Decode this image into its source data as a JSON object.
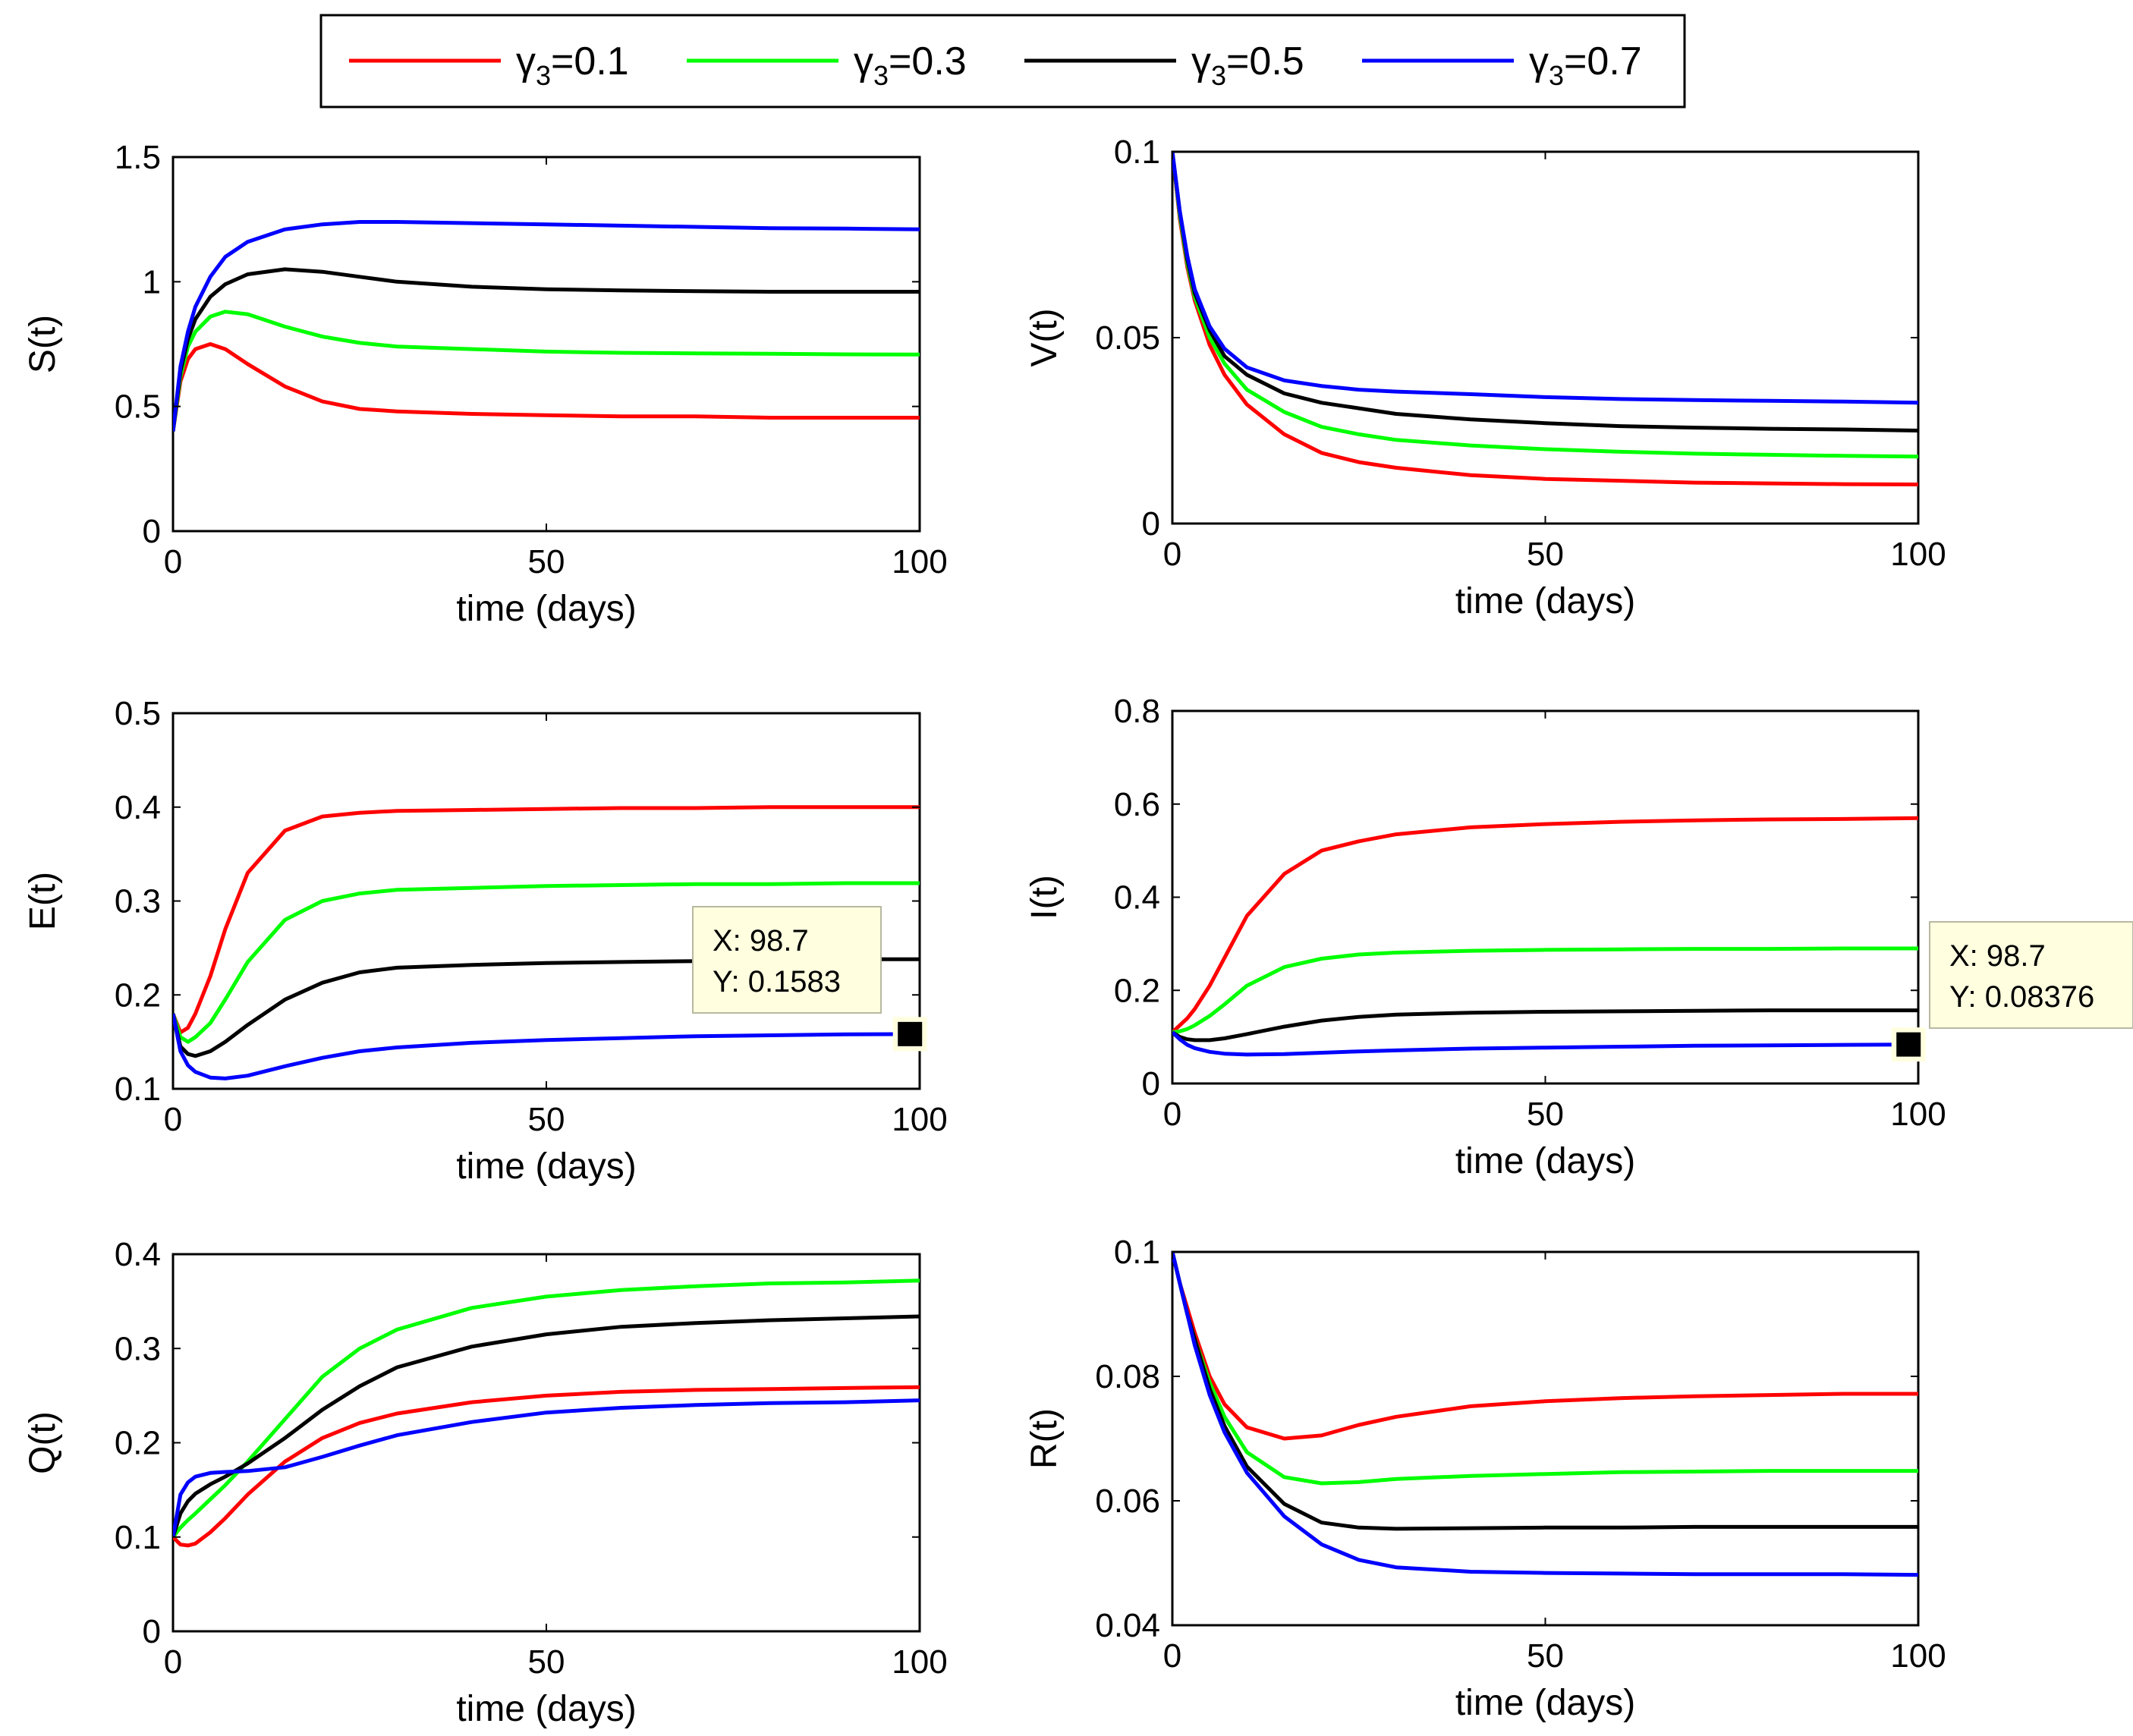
{
  "legend": {
    "entries": [
      {
        "symbol": "γ",
        "subscript": "3",
        "value": "=0.1",
        "color": "#ff0000"
      },
      {
        "symbol": "γ",
        "subscript": "3",
        "value": "=0.3",
        "color": "#00ff00"
      },
      {
        "symbol": "γ",
        "subscript": "3",
        "value": "=0.5",
        "color": "#000000"
      },
      {
        "symbol": "γ",
        "subscript": "3",
        "value": "=0.7",
        "color": "#0000ff"
      }
    ]
  },
  "chart_data": [
    {
      "type": "line",
      "ylabel": "S(t)",
      "xlabel": "time (days)",
      "xlim": [
        0,
        100
      ],
      "ylim": [
        0,
        1.5
      ],
      "xticks": [
        "0",
        "50",
        "100"
      ],
      "yticks": [
        "0",
        "0.5",
        "1",
        "1.5"
      ],
      "x": [
        0,
        1,
        2,
        3,
        5,
        7,
        10,
        15,
        20,
        25,
        30,
        40,
        50,
        60,
        70,
        80,
        90,
        100
      ],
      "series": [
        {
          "values": [
            0.4,
            0.6,
            0.69,
            0.73,
            0.75,
            0.73,
            0.67,
            0.58,
            0.52,
            0.49,
            0.48,
            0.47,
            0.465,
            0.46,
            0.46,
            0.455,
            0.455,
            0.455
          ],
          "color": "#ff0000"
        },
        {
          "values": [
            0.4,
            0.62,
            0.74,
            0.8,
            0.86,
            0.88,
            0.87,
            0.82,
            0.78,
            0.755,
            0.74,
            0.73,
            0.72,
            0.715,
            0.713,
            0.711,
            0.709,
            0.708
          ],
          "color": "#00ff00"
        },
        {
          "values": [
            0.4,
            0.64,
            0.77,
            0.85,
            0.94,
            0.99,
            1.03,
            1.05,
            1.04,
            1.02,
            1.0,
            0.98,
            0.97,
            0.965,
            0.962,
            0.96,
            0.96,
            0.96
          ],
          "color": "#000000"
        },
        {
          "values": [
            0.4,
            0.66,
            0.8,
            0.9,
            1.02,
            1.1,
            1.16,
            1.21,
            1.23,
            1.24,
            1.24,
            1.235,
            1.23,
            1.225,
            1.22,
            1.215,
            1.213,
            1.21
          ],
          "color": "#0000ff"
        }
      ]
    },
    {
      "type": "line",
      "ylabel": "V(t)",
      "xlabel": "time (days)",
      "xlim": [
        0,
        100
      ],
      "ylim": [
        0,
        0.1
      ],
      "xticks": [
        "0",
        "50",
        "100"
      ],
      "yticks": [
        "0",
        "0.05",
        "0.1"
      ],
      "x": [
        0,
        1,
        2,
        3,
        5,
        7,
        10,
        15,
        20,
        25,
        30,
        40,
        50,
        60,
        70,
        80,
        90,
        100
      ],
      "series": [
        {
          "values": [
            0.1,
            0.082,
            0.069,
            0.06,
            0.048,
            0.04,
            0.032,
            0.024,
            0.019,
            0.0165,
            0.015,
            0.013,
            0.012,
            0.0115,
            0.011,
            0.0108,
            0.0106,
            0.0105
          ],
          "color": "#ff0000"
        },
        {
          "values": [
            0.1,
            0.083,
            0.07,
            0.061,
            0.05,
            0.043,
            0.036,
            0.03,
            0.026,
            0.024,
            0.0225,
            0.021,
            0.02,
            0.0193,
            0.0188,
            0.0185,
            0.0182,
            0.018
          ],
          "color": "#00ff00"
        },
        {
          "values": [
            0.1,
            0.084,
            0.071,
            0.062,
            0.052,
            0.045,
            0.04,
            0.035,
            0.0325,
            0.031,
            0.0295,
            0.028,
            0.027,
            0.0262,
            0.0258,
            0.0255,
            0.0253,
            0.025
          ],
          "color": "#000000"
        },
        {
          "values": [
            0.1,
            0.084,
            0.072,
            0.063,
            0.053,
            0.047,
            0.042,
            0.0385,
            0.037,
            0.036,
            0.0355,
            0.0348,
            0.034,
            0.0335,
            0.0332,
            0.033,
            0.0328,
            0.0325
          ],
          "color": "#0000ff"
        }
      ]
    },
    {
      "type": "line",
      "ylabel": "E(t)",
      "xlabel": "time (days)",
      "xlim": [
        0,
        100
      ],
      "ylim": [
        0.1,
        0.5
      ],
      "xticks": [
        "0",
        "50",
        "100"
      ],
      "yticks": [
        "0.1",
        "0.2",
        "0.3",
        "0.4",
        "0.5"
      ],
      "x": [
        0,
        1,
        2,
        3,
        5,
        7,
        10,
        15,
        20,
        25,
        30,
        40,
        50,
        60,
        70,
        80,
        90,
        100
      ],
      "series": [
        {
          "values": [
            0.18,
            0.16,
            0.165,
            0.18,
            0.22,
            0.27,
            0.33,
            0.375,
            0.39,
            0.394,
            0.396,
            0.397,
            0.398,
            0.399,
            0.399,
            0.4,
            0.4,
            0.4
          ],
          "color": "#ff0000"
        },
        {
          "values": [
            0.18,
            0.155,
            0.15,
            0.155,
            0.17,
            0.195,
            0.235,
            0.28,
            0.3,
            0.308,
            0.312,
            0.314,
            0.316,
            0.317,
            0.318,
            0.318,
            0.319,
            0.319
          ],
          "color": "#00ff00"
        },
        {
          "values": [
            0.18,
            0.145,
            0.137,
            0.135,
            0.14,
            0.15,
            0.168,
            0.195,
            0.213,
            0.224,
            0.229,
            0.232,
            0.234,
            0.235,
            0.236,
            0.237,
            0.238,
            0.238
          ],
          "color": "#000000"
        },
        {
          "values": [
            0.18,
            0.14,
            0.125,
            0.118,
            0.112,
            0.111,
            0.114,
            0.124,
            0.133,
            0.14,
            0.144,
            0.149,
            0.152,
            0.154,
            0.156,
            0.157,
            0.158,
            0.1583
          ],
          "color": "#0000ff"
        }
      ],
      "datatip": {
        "x_label": "X: 98.7",
        "y_label": "Y: 0.1583",
        "x": 98.7,
        "y": 0.1583
      }
    },
    {
      "type": "line",
      "ylabel": "I(t)",
      "xlabel": "time (days)",
      "xlim": [
        0,
        100
      ],
      "ylim": [
        0,
        0.8
      ],
      "xticks": [
        "0",
        "50",
        "100"
      ],
      "yticks": [
        "0",
        "0.2",
        "0.4",
        "0.6",
        "0.8"
      ],
      "x": [
        0,
        1,
        2,
        3,
        5,
        7,
        10,
        15,
        20,
        25,
        30,
        40,
        50,
        60,
        70,
        80,
        90,
        100
      ],
      "series": [
        {
          "values": [
            0.11,
            0.125,
            0.14,
            0.16,
            0.21,
            0.27,
            0.36,
            0.45,
            0.5,
            0.52,
            0.535,
            0.55,
            0.557,
            0.562,
            0.565,
            0.567,
            0.568,
            0.57
          ],
          "color": "#ff0000"
        },
        {
          "values": [
            0.11,
            0.112,
            0.117,
            0.125,
            0.145,
            0.17,
            0.21,
            0.25,
            0.268,
            0.277,
            0.281,
            0.285,
            0.287,
            0.288,
            0.289,
            0.289,
            0.29,
            0.29
          ],
          "color": "#00ff00"
        },
        {
          "values": [
            0.11,
            0.1,
            0.095,
            0.093,
            0.093,
            0.097,
            0.106,
            0.122,
            0.135,
            0.143,
            0.148,
            0.152,
            0.154,
            0.155,
            0.156,
            0.157,
            0.157,
            0.157
          ],
          "color": "#000000"
        },
        {
          "values": [
            0.11,
            0.095,
            0.083,
            0.076,
            0.068,
            0.064,
            0.062,
            0.063,
            0.066,
            0.069,
            0.071,
            0.075,
            0.077,
            0.079,
            0.081,
            0.082,
            0.083,
            0.08376
          ],
          "color": "#0000ff"
        }
      ],
      "datatip": {
        "x_label": "X: 98.7",
        "y_label": "Y: 0.08376",
        "x": 98.7,
        "y": 0.08376
      }
    },
    {
      "type": "line",
      "ylabel": "Q(t)",
      "xlabel": "time (days)",
      "xlim": [
        0,
        100
      ],
      "ylim": [
        0,
        0.4
      ],
      "xticks": [
        "0",
        "50",
        "100"
      ],
      "yticks": [
        "0",
        "0.1",
        "0.2",
        "0.3",
        "0.4"
      ],
      "x": [
        0,
        1,
        2,
        3,
        5,
        7,
        10,
        15,
        20,
        25,
        30,
        40,
        50,
        60,
        70,
        80,
        90,
        100
      ],
      "series": [
        {
          "values": [
            0.1,
            0.092,
            0.091,
            0.093,
            0.105,
            0.12,
            0.145,
            0.18,
            0.205,
            0.221,
            0.231,
            0.243,
            0.25,
            0.254,
            0.256,
            0.257,
            0.258,
            0.259
          ],
          "color": "#ff0000"
        },
        {
          "values": [
            0.1,
            0.11,
            0.118,
            0.125,
            0.14,
            0.155,
            0.18,
            0.225,
            0.27,
            0.3,
            0.32,
            0.343,
            0.355,
            0.362,
            0.366,
            0.369,
            0.37,
            0.372
          ],
          "color": "#00ff00"
        },
        {
          "values": [
            0.1,
            0.125,
            0.138,
            0.146,
            0.156,
            0.164,
            0.178,
            0.205,
            0.235,
            0.26,
            0.28,
            0.302,
            0.315,
            0.323,
            0.327,
            0.33,
            0.332,
            0.334
          ],
          "color": "#000000"
        },
        {
          "values": [
            0.1,
            0.145,
            0.158,
            0.164,
            0.168,
            0.169,
            0.17,
            0.174,
            0.185,
            0.197,
            0.208,
            0.222,
            0.232,
            0.237,
            0.24,
            0.242,
            0.243,
            0.245
          ],
          "color": "#0000ff"
        }
      ]
    },
    {
      "type": "line",
      "ylabel": "R(t)",
      "xlabel": "time (days)",
      "xlim": [
        0,
        100
      ],
      "ylim": [
        0.04,
        0.1
      ],
      "xticks": [
        "0",
        "50",
        "100"
      ],
      "yticks": [
        "0.04",
        "0.06",
        "0.08",
        "0.1"
      ],
      "x": [
        0,
        1,
        2,
        3,
        5,
        7,
        10,
        15,
        20,
        25,
        30,
        40,
        50,
        60,
        70,
        80,
        90,
        100
      ],
      "series": [
        {
          "values": [
            0.1,
            0.095,
            0.091,
            0.087,
            0.08,
            0.0755,
            0.0718,
            0.07,
            0.0705,
            0.0722,
            0.0735,
            0.0752,
            0.076,
            0.0765,
            0.0768,
            0.077,
            0.0772,
            0.0772
          ],
          "color": "#ff0000"
        },
        {
          "values": [
            0.1,
            0.095,
            0.09,
            0.086,
            0.079,
            0.0735,
            0.0678,
            0.0638,
            0.0628,
            0.063,
            0.0635,
            0.064,
            0.0643,
            0.0646,
            0.0647,
            0.0648,
            0.0648,
            0.0648
          ],
          "color": "#00ff00"
        },
        {
          "values": [
            0.1,
            0.095,
            0.09,
            0.086,
            0.078,
            0.072,
            0.0655,
            0.0595,
            0.0565,
            0.0557,
            0.0555,
            0.0556,
            0.0557,
            0.0557,
            0.0558,
            0.0558,
            0.0558,
            0.0558
          ],
          "color": "#000000"
        },
        {
          "values": [
            0.1,
            0.095,
            0.09,
            0.085,
            0.077,
            0.071,
            0.0645,
            0.0575,
            0.053,
            0.0505,
            0.0493,
            0.0486,
            0.0484,
            0.0483,
            0.0482,
            0.0482,
            0.0482,
            0.0481
          ],
          "color": "#0000ff"
        }
      ]
    }
  ]
}
